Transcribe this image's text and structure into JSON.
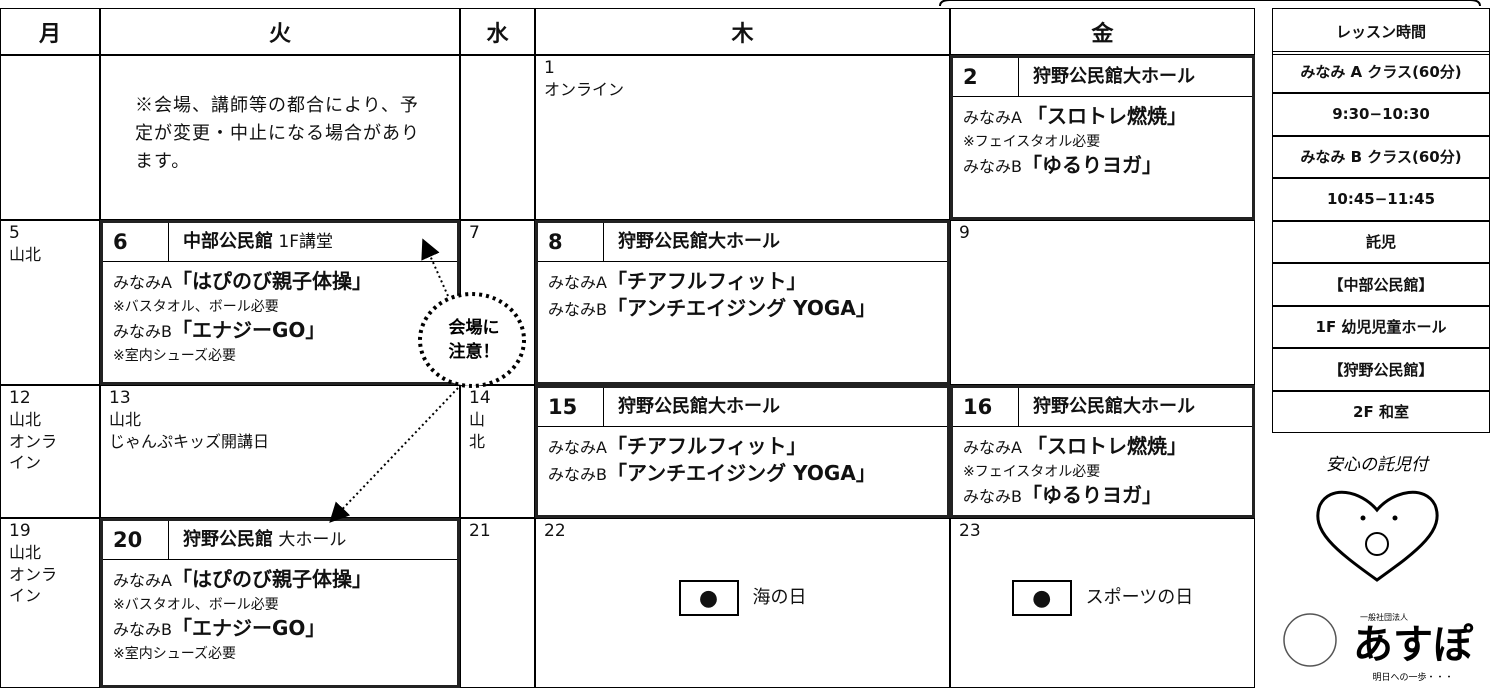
{
  "header": {
    "days": [
      "月",
      "火",
      "水",
      "木",
      "金"
    ]
  },
  "weeks": [
    {
      "cells": [
        null,
        {
          "notice": "※会場、講師等の都合により、予定が変更・中止になる場合があります。"
        },
        null,
        {
          "date": "1",
          "lines": [
            [
              {
                "text": "オンライン"
              }
            ]
          ]
        },
        {
          "date": "2",
          "venue": "狩野公民館大ホール",
          "lines": [
            [
              {
                "text": "みなみA "
              },
              {
                "text": "「スロトレ燃焼」",
                "style": "bold"
              }
            ],
            [
              {
                "text": "※フェイスタオル必要",
                "style": "note"
              }
            ],
            [
              {
                "text": "みなみB"
              },
              {
                "text": "「ゆるりヨガ」",
                "style": "bold"
              }
            ]
          ]
        }
      ]
    },
    {
      "cells": [
        {
          "date": "5",
          "lines": [
            [
              {
                "text": "山北"
              }
            ]
          ]
        },
        {
          "date": "6",
          "venue": "中部公民館",
          "venue_sub": "1F講堂",
          "lines": [
            [
              {
                "text": "みなみA"
              },
              {
                "text": "「はぴのび親子体操」",
                "style": "bold"
              }
            ],
            [
              {
                "text": "※バスタオル、ボール必要",
                "style": "note"
              }
            ],
            [
              {
                "text": "みなみB"
              },
              {
                "text": "「エナジーGO」",
                "style": "bold"
              }
            ],
            [
              {
                "text": "※室内シューズ必要",
                "style": "note"
              }
            ]
          ]
        },
        {
          "date": "7"
        },
        {
          "date": "8",
          "venue": "狩野公民館大ホール",
          "lines": [
            [
              {
                "text": "みなみA"
              },
              {
                "text": "「チアフルフィット」",
                "style": "bold"
              }
            ],
            [
              {
                "text": "みなみB"
              },
              {
                "text": "「アンチエイジング YOGA」",
                "style": "bold"
              }
            ]
          ]
        },
        {
          "date": "9"
        }
      ]
    },
    {
      "cells": [
        {
          "date": "12",
          "lines": [
            [
              {
                "text": "山北"
              }
            ],
            [
              {
                "text": "オンライン"
              }
            ]
          ]
        },
        {
          "date": "13",
          "lines": [
            [
              {
                "text": "山北"
              }
            ],
            [
              {
                "text": "じゃんぷキッズ開講日"
              }
            ]
          ]
        },
        {
          "date": "14",
          "lines": [
            [
              {
                "text": "山北"
              }
            ]
          ]
        },
        {
          "date": "15",
          "venue": "狩野公民館大ホール",
          "lines": [
            [
              {
                "text": "みなみA"
              },
              {
                "text": "「チアフルフィット」",
                "style": "bold"
              }
            ],
            [
              {
                "text": "みなみB"
              },
              {
                "text": "「アンチエイジング YOGA」",
                "style": "bold"
              }
            ]
          ]
        },
        {
          "date": "16",
          "venue": "狩野公民館大ホール",
          "lines": [
            [
              {
                "text": "みなみA "
              },
              {
                "text": "「スロトレ燃焼」",
                "style": "bold"
              }
            ],
            [
              {
                "text": "※フェイスタオル必要",
                "style": "note"
              }
            ],
            [
              {
                "text": "みなみB"
              },
              {
                "text": "「ゆるりヨガ」",
                "style": "bold"
              }
            ]
          ]
        }
      ]
    },
    {
      "cells": [
        {
          "date": "19",
          "lines": [
            [
              {
                "text": "山北"
              }
            ],
            [
              {
                "text": "オンライン"
              }
            ]
          ]
        },
        {
          "date": "20",
          "venue": "狩野公民館",
          "venue_sub": "大ホール",
          "lines": [
            [
              {
                "text": "みなみA"
              },
              {
                "text": "「はぴのび親子体操」",
                "style": "bold"
              }
            ],
            [
              {
                "text": "※バスタオル、ボール必要",
                "style": "note"
              }
            ],
            [
              {
                "text": "みなみB"
              },
              {
                "text": "「エナジーGO」",
                "style": "bold"
              }
            ],
            [
              {
                "text": "※室内シューズ必要",
                "style": "note"
              }
            ]
          ]
        },
        {
          "date": "21"
        },
        {
          "date": "22",
          "holiday": "海の日"
        },
        {
          "date": "23",
          "holiday": "スポーツの日"
        }
      ]
    }
  ],
  "callout": [
    "会場に",
    "注意！"
  ],
  "lesson_info": [
    "レッスン時間",
    "みなみ A クラス(60分)",
    "9:30−10:30",
    "みなみ B クラス(60分)",
    "10:45−11:45",
    "託児",
    "【中部公民館】",
    "1F 幼児児童ホール",
    "【狩野公民館】",
    "2F 和室"
  ],
  "logo": {
    "tagline": "安心の託児付",
    "org_type": "一般社団法人",
    "name": "あすぽ",
    "motto": "明日への一歩・・・"
  }
}
